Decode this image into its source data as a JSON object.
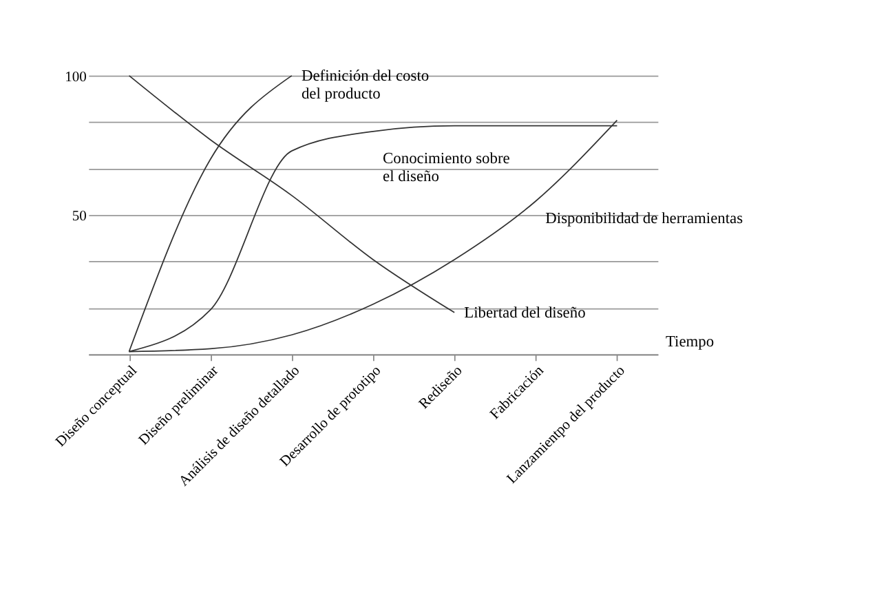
{
  "chart_data": {
    "type": "line",
    "xlabel": "Tiempo",
    "categories": [
      "Diseño  conceptual",
      "Diseño preliminar",
      "Análisis de diseño detallado",
      "Desarrollo de prototipo",
      "Rediseño",
      "Fabricación",
      "Lanzamientpo del producto"
    ],
    "series": [
      {
        "name": "Definición del costo del producto",
        "color": "#333333",
        "values": [
          1,
          70,
          100,
          null,
          null,
          null,
          null
        ]
      },
      {
        "name": "Conocimiento sobre el diseño",
        "color": "#333333",
        "values": [
          1,
          16,
          73,
          80,
          82,
          82,
          82
        ]
      },
      {
        "name": "Disponibilidad de herramientas",
        "color": "#333333",
        "values": [
          1,
          2,
          7,
          18,
          34,
          55,
          84
        ]
      },
      {
        "name": "Libertad del diseño",
        "color": "#333333",
        "values": [
          100,
          77,
          57,
          34,
          15,
          null,
          null
        ]
      }
    ],
    "ylim": [
      0,
      100
    ],
    "yticks": [
      {
        "value": 0,
        "label": null
      },
      {
        "value": 16.7,
        "label": null
      },
      {
        "value": 33.3,
        "label": null
      },
      50,
      {
        "value": 66.7,
        "label": null
      },
      {
        "value": 83.3,
        "label": null
      },
      100
    ],
    "grid": "y",
    "marker": "none",
    "line_style": "solid"
  }
}
